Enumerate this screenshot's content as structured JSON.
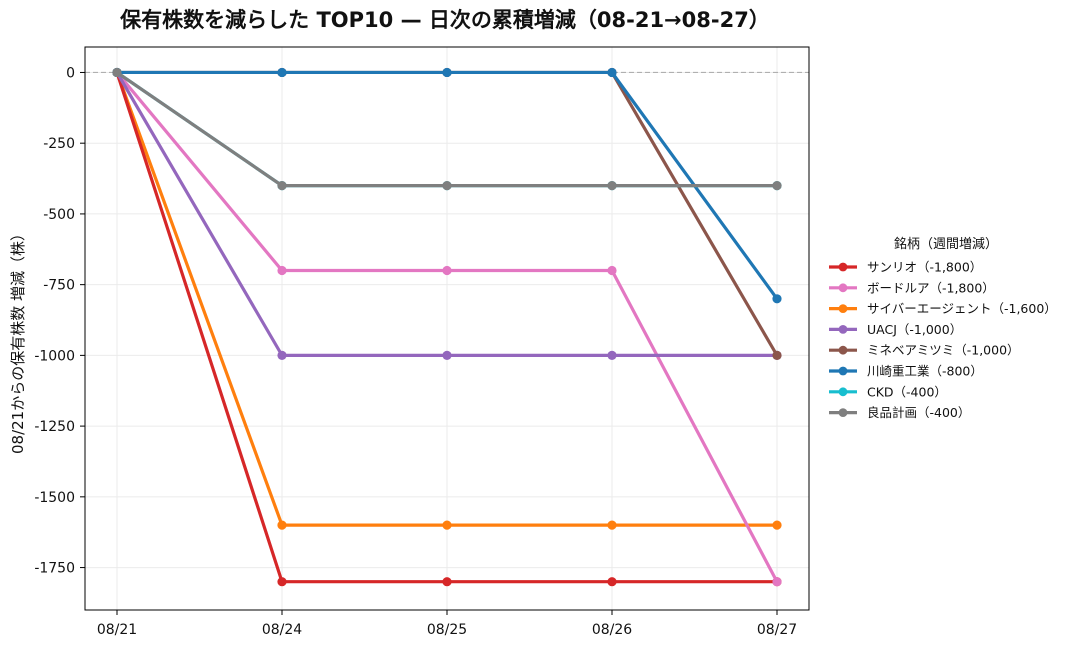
{
  "chart_data": {
    "type": "line",
    "title": "保有株数を減らした TOP10 — 日次の累積増減（08-21→08-27）",
    "xlabel": "",
    "ylabel": "08/21からの保有株数 増減（株）",
    "categories": [
      "08/21",
      "08/24",
      "08/25",
      "08/26",
      "08/27"
    ],
    "ylim": [
      -1900,
      90
    ],
    "yticks": [
      0,
      -250,
      -500,
      -750,
      -1000,
      -1250,
      -1500,
      -1750
    ],
    "ytick_labels": [
      "0",
      "-250",
      "-500",
      "-750",
      "-1000",
      "-1250",
      "-1500",
      "-1750"
    ],
    "grid": true,
    "zero_line": "dashed",
    "legend": {
      "title": "銘柄（週間増減）",
      "placement": "right"
    },
    "series": [
      {
        "name": "サンリオ（-1,800）",
        "color": "#d62728",
        "values": [
          0,
          -1800,
          -1800,
          -1800,
          -1800
        ]
      },
      {
        "name": "ボードルア（-1,800）",
        "color": "#e377c2",
        "values": [
          0,
          -700,
          -700,
          -700,
          -1800
        ]
      },
      {
        "name": "サイバーエージェント（-1,600）",
        "color": "#ff7f0e",
        "values": [
          0,
          -1600,
          -1600,
          -1600,
          -1600
        ]
      },
      {
        "name": "UACJ（-1,000）",
        "color": "#9467bd",
        "values": [
          0,
          -1000,
          -1000,
          -1000,
          -1000
        ]
      },
      {
        "name": "ミネベアミツミ（-1,000）",
        "color": "#8c564b",
        "values": [
          0,
          0,
          0,
          0,
          -1000
        ]
      },
      {
        "name": "川崎重工業（-800）",
        "color": "#1f77b4",
        "values": [
          0,
          0,
          0,
          0,
          -800
        ]
      },
      {
        "name": "CKD（-400）",
        "color": "#17becf",
        "values": [
          0,
          -400,
          -400,
          -400,
          -400
        ]
      },
      {
        "name": "良品計画（-400）",
        "color": "#7f7f7f",
        "values": [
          0,
          -400,
          -400,
          -400,
          -400
        ]
      }
    ],
    "draw_order": [
      2,
      0,
      1,
      3,
      4,
      5,
      6,
      7
    ]
  }
}
